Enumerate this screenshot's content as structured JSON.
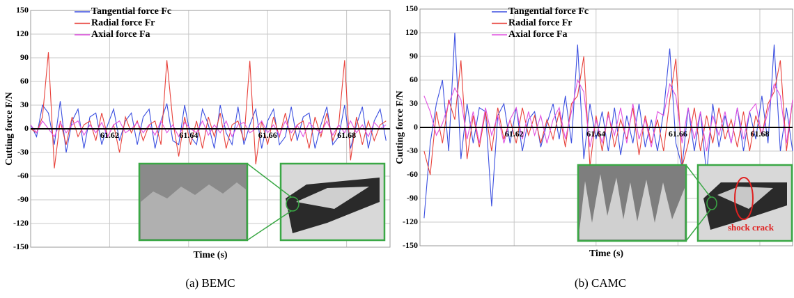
{
  "chart_data": [
    {
      "type": "line",
      "y_label": "Cutting force F/N",
      "x_label": "Time (s)",
      "caption": "(a) BEMC",
      "xlim": [
        61.6,
        61.691
      ],
      "xticks": [
        61.62,
        61.64,
        61.66,
        61.68
      ],
      "ylim": [
        -150,
        150
      ],
      "yticks": [
        -150,
        -120,
        -90,
        -60,
        -30,
        0,
        30,
        60,
        90,
        120,
        150
      ],
      "grid": true,
      "x": [
        61.6,
        61.6015,
        61.603,
        61.6045,
        61.606,
        61.6075,
        61.609,
        61.6105,
        61.612,
        61.6135,
        61.615,
        61.6165,
        61.618,
        61.6195,
        61.621,
        61.6225,
        61.624,
        61.6255,
        61.627,
        61.6285,
        61.63,
        61.6315,
        61.633,
        61.6345,
        61.636,
        61.6375,
        61.639,
        61.6405,
        61.642,
        61.6435,
        61.645,
        61.6465,
        61.648,
        61.6495,
        61.651,
        61.6525,
        61.654,
        61.6555,
        61.657,
        61.6585,
        61.66,
        61.6615,
        61.663,
        61.6645,
        61.666,
        61.6675,
        61.669,
        61.6705,
        61.672,
        61.6735,
        61.675,
        61.6765,
        61.678,
        61.6795,
        61.681,
        61.6825,
        61.684,
        61.6855,
        61.687,
        61.6885,
        61.69
      ],
      "series": [
        {
          "name": "Tangential force Fc",
          "color": "#3b4fe0",
          "values": [
            5,
            -10,
            30,
            20,
            -20,
            35,
            -30,
            10,
            25,
            -25,
            15,
            20,
            -20,
            5,
            25,
            -15,
            10,
            20,
            -20,
            15,
            25,
            -25,
            10,
            32,
            -15,
            -20,
            30,
            -10,
            -20,
            25,
            5,
            -25,
            30,
            -5,
            -20,
            28,
            -20,
            5,
            25,
            -25,
            10,
            25,
            -20,
            -10,
            28,
            -15,
            15,
            20,
            -25,
            5,
            28,
            -20,
            -10,
            30,
            -25,
            5,
            28,
            -25,
            10,
            25,
            -15
          ]
        },
        {
          "name": "Radial force Fr",
          "color": "#e8413a",
          "values": [
            0,
            -5,
            15,
            97,
            -50,
            10,
            -20,
            15,
            -10,
            5,
            10,
            -15,
            20,
            -10,
            5,
            -30,
            15,
            -5,
            10,
            -15,
            5,
            10,
            -20,
            87,
            10,
            -35,
            15,
            -20,
            10,
            -25,
            15,
            -10,
            20,
            -25,
            5,
            10,
            -15,
            86,
            -45,
            10,
            -20,
            15,
            -10,
            20,
            -15,
            5,
            10,
            -25,
            15,
            -10,
            20,
            -15,
            5,
            87,
            -40,
            15,
            -20,
            10,
            -15,
            5,
            10
          ]
        },
        {
          "name": "Axial force Fa",
          "color": "#e050e0",
          "values": [
            5,
            -5,
            10,
            0,
            -10,
            8,
            -5,
            5,
            10,
            -8,
            5,
            -5,
            8,
            -10,
            5,
            10,
            -5,
            0,
            8,
            -5,
            5,
            -8,
            10,
            -5,
            5,
            -10,
            8,
            0,
            -5,
            10,
            -8,
            5,
            -5,
            10,
            -10,
            5,
            8,
            -5,
            0,
            10,
            -5,
            5,
            -8,
            10,
            -5,
            5,
            -10,
            8,
            0,
            -5,
            10,
            -8,
            5,
            -5,
            10,
            -5,
            5,
            -10,
            8,
            0,
            5
          ]
        }
      ]
    },
    {
      "type": "line",
      "y_label": "Cutting force F/N",
      "x_label": "Time (s)",
      "caption": "(b) CAMC",
      "annotation": "shock crack",
      "xlim": [
        61.597,
        61.688
      ],
      "xticks": [
        61.62,
        61.64,
        61.66,
        61.68
      ],
      "ylim": [
        -150,
        150
      ],
      "yticks": [
        -150,
        -120,
        -90,
        -60,
        -30,
        0,
        30,
        60,
        90,
        120,
        150
      ],
      "grid": true,
      "x": [
        61.598,
        61.5995,
        61.601,
        61.6025,
        61.604,
        61.6055,
        61.607,
        61.6085,
        61.61,
        61.6115,
        61.613,
        61.6145,
        61.616,
        61.6175,
        61.619,
        61.6205,
        61.622,
        61.6235,
        61.625,
        61.6265,
        61.628,
        61.6295,
        61.631,
        61.6325,
        61.634,
        61.6355,
        61.637,
        61.6385,
        61.64,
        61.6415,
        61.643,
        61.6445,
        61.646,
        61.6475,
        61.649,
        61.6505,
        61.652,
        61.6535,
        61.655,
        61.6565,
        61.658,
        61.6595,
        61.661,
        61.6625,
        61.664,
        61.6655,
        61.667,
        61.6685,
        61.67,
        61.6715,
        61.673,
        61.6745,
        61.676,
        61.6775,
        61.679,
        61.6805,
        61.682,
        61.6835,
        61.685,
        61.6865,
        61.688
      ],
      "series": [
        {
          "name": "Tangential force Fc",
          "color": "#3b4fe0",
          "values": [
            -115,
            -20,
            30,
            60,
            -30,
            120,
            -40,
            30,
            -20,
            25,
            20,
            -100,
            15,
            30,
            -20,
            25,
            -30,
            10,
            20,
            -25,
            5,
            30,
            -15,
            40,
            -20,
            105,
            -40,
            30,
            -15,
            20,
            -30,
            25,
            -35,
            15,
            -20,
            30,
            -25,
            10,
            -30,
            20,
            100,
            -20,
            -50,
            25,
            -30,
            20,
            -60,
            30,
            -25,
            15,
            -20,
            25,
            -30,
            20,
            -15,
            40,
            -20,
            105,
            -30,
            25,
            -30
          ]
        },
        {
          "name": "Radial force Fr",
          "color": "#e8413a",
          "values": [
            -30,
            -60,
            20,
            -20,
            35,
            10,
            85,
            -40,
            15,
            -25,
            20,
            -30,
            25,
            -15,
            10,
            -20,
            25,
            -10,
            15,
            -20,
            10,
            -15,
            20,
            -25,
            30,
            40,
            90,
            -50,
            15,
            -30,
            20,
            -25,
            10,
            -15,
            25,
            -35,
            15,
            -20,
            10,
            -30,
            35,
            87,
            -50,
            -20,
            25,
            -30,
            15,
            -20,
            25,
            -15,
            10,
            -25,
            20,
            -30,
            15,
            -10,
            30,
            45,
            85,
            -30,
            35
          ]
        },
        {
          "name": "Axial force Fa",
          "color": "#e050e0",
          "values": [
            40,
            20,
            -10,
            5,
            30,
            50,
            35,
            -15,
            20,
            -20,
            25,
            -10,
            15,
            -20,
            10,
            25,
            -15,
            20,
            -10,
            15,
            -20,
            10,
            25,
            -15,
            20,
            60,
            45,
            -25,
            10,
            -20,
            15,
            -10,
            25,
            -20,
            30,
            -15,
            10,
            -25,
            20,
            15,
            55,
            40,
            -20,
            25,
            -15,
            20,
            -30,
            15,
            -10,
            20,
            -20,
            25,
            -15,
            20,
            30,
            -10,
            20,
            55,
            40,
            -20,
            35
          ]
        }
      ]
    }
  ]
}
